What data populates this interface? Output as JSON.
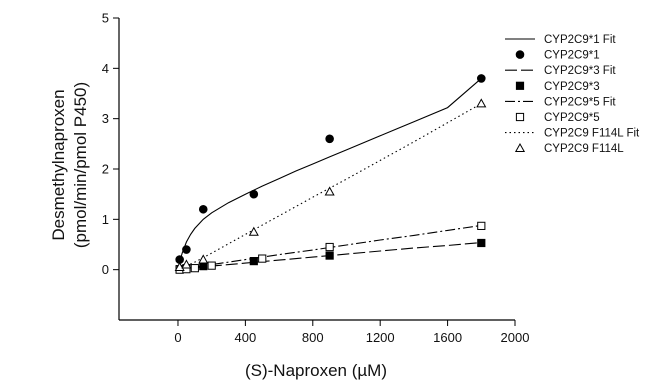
{
  "chart_data": {
    "type": "scatter",
    "xlabel": "(S)-Naproxen (µM)",
    "ylabel_line1": "Desmethylnaproxen",
    "ylabel_line2": "(pmol/min/pmol P450)",
    "xlim": [
      -350,
      2000
    ],
    "ylim": [
      -1,
      5
    ],
    "x_ticks": [
      0,
      400,
      800,
      1200,
      1600,
      2000
    ],
    "y_ticks": [
      0,
      1,
      2,
      3,
      4,
      5
    ],
    "grid": false,
    "legend_position": "top-right",
    "series": [
      {
        "name": "CYP2C9*1",
        "fit_name": "CYP2C9*1 Fit",
        "marker": "filled-circle",
        "line_style": "solid",
        "points": [
          [
            10,
            0.2
          ],
          [
            50,
            0.4
          ],
          [
            150,
            1.2
          ],
          [
            450,
            1.5
          ],
          [
            900,
            2.6
          ],
          [
            1800,
            3.8
          ]
        ],
        "fit": [
          [
            0,
            0
          ],
          [
            10,
            0.16
          ],
          [
            25,
            0.33
          ],
          [
            50,
            0.55
          ],
          [
            75,
            0.7
          ],
          [
            100,
            0.82
          ],
          [
            150,
            1.0
          ],
          [
            200,
            1.13
          ],
          [
            300,
            1.33
          ],
          [
            400,
            1.5
          ],
          [
            500,
            1.66
          ],
          [
            600,
            1.81
          ],
          [
            700,
            1.96
          ],
          [
            800,
            2.1
          ],
          [
            900,
            2.24
          ],
          [
            1000,
            2.38
          ],
          [
            1200,
            2.66
          ],
          [
            1400,
            2.94
          ],
          [
            1600,
            3.22
          ],
          [
            1800,
            3.8
          ]
        ]
      },
      {
        "name": "CYP2C9*3",
        "fit_name": "CYP2C9*3 Fit",
        "marker": "filled-square",
        "line_style": "long-dash",
        "points": [
          [
            10,
            0.01
          ],
          [
            50,
            0.03
          ],
          [
            150,
            0.07
          ],
          [
            450,
            0.17
          ],
          [
            900,
            0.28
          ],
          [
            1800,
            0.53
          ]
        ],
        "fit": [
          [
            0,
            0
          ],
          [
            200,
            0.07
          ],
          [
            400,
            0.13
          ],
          [
            600,
            0.19
          ],
          [
            800,
            0.25
          ],
          [
            1000,
            0.31
          ],
          [
            1200,
            0.37
          ],
          [
            1400,
            0.43
          ],
          [
            1600,
            0.48
          ],
          [
            1800,
            0.54
          ]
        ]
      },
      {
        "name": "CYP2C9*5",
        "fit_name": "CYP2C9*5 Fit",
        "marker": "open-square",
        "line_style": "dash-dot",
        "points": [
          [
            10,
            0.0
          ],
          [
            50,
            0.01
          ],
          [
            100,
            0.03
          ],
          [
            200,
            0.08
          ],
          [
            500,
            0.22
          ],
          [
            900,
            0.45
          ],
          [
            1800,
            0.87
          ]
        ],
        "fit": [
          [
            0,
            0
          ],
          [
            200,
            0.1
          ],
          [
            400,
            0.2
          ],
          [
            600,
            0.3
          ],
          [
            800,
            0.39
          ],
          [
            1000,
            0.49
          ],
          [
            1200,
            0.59
          ],
          [
            1400,
            0.68
          ],
          [
            1600,
            0.78
          ],
          [
            1800,
            0.88
          ]
        ]
      },
      {
        "name": "CYP2C9 F114L",
        "fit_name": "CYP2C9 F114L Fit",
        "marker": "open-triangle",
        "line_style": "dotted",
        "points": [
          [
            10,
            0.05
          ],
          [
            50,
            0.1
          ],
          [
            150,
            0.2
          ],
          [
            450,
            0.75
          ],
          [
            900,
            1.55
          ],
          [
            1800,
            3.3
          ]
        ],
        "fit": [
          [
            0,
            0
          ],
          [
            100,
            0.15
          ],
          [
            200,
            0.33
          ],
          [
            400,
            0.7
          ],
          [
            600,
            1.07
          ],
          [
            800,
            1.44
          ],
          [
            1000,
            1.8
          ],
          [
            1200,
            2.17
          ],
          [
            1400,
            2.54
          ],
          [
            1600,
            2.92
          ],
          [
            1800,
            3.3
          ]
        ]
      }
    ]
  }
}
